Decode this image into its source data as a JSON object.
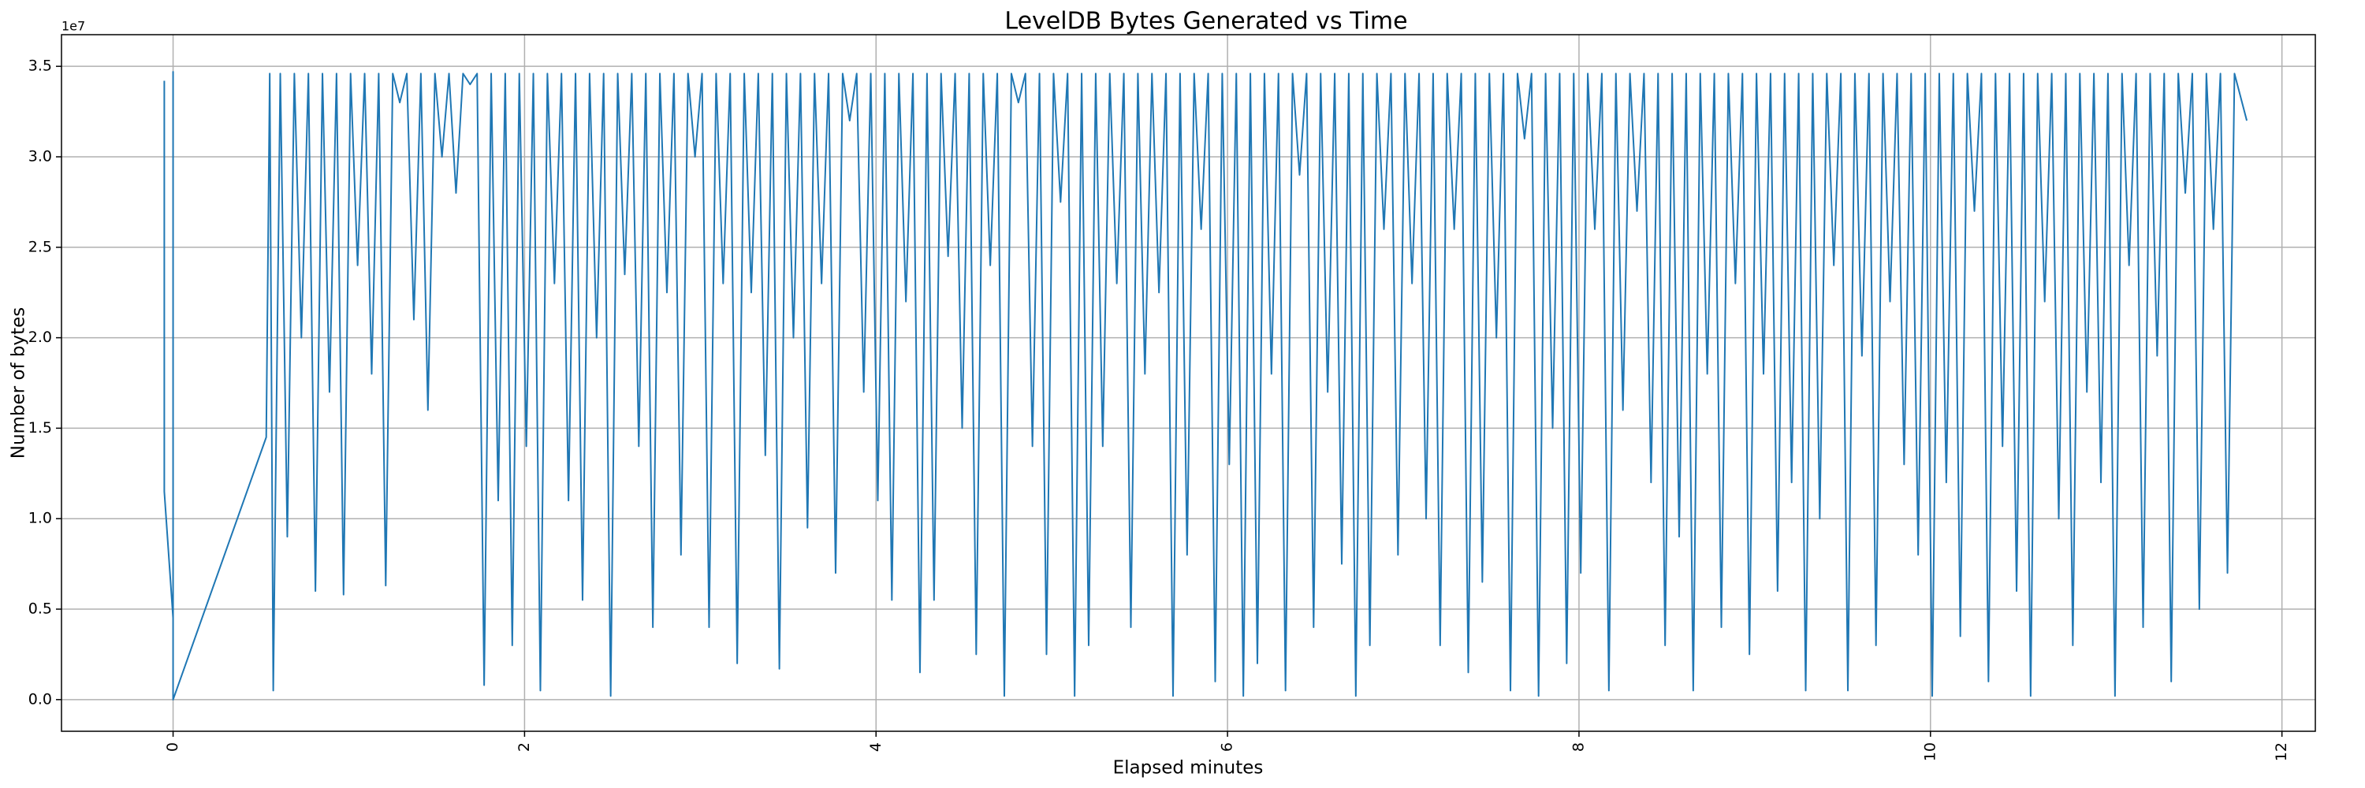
{
  "chart_data": {
    "type": "line",
    "title": "LevelDB Bytes Generated vs Time",
    "xlabel": "Elapsed minutes",
    "ylabel": "Number of bytes",
    "y_offset_label": "1e7",
    "color": "#1f77b4",
    "grid": true,
    "xlim": [
      -0.635,
      12.19
    ],
    "ylim": [
      -0.175,
      3.675
    ],
    "xticks": [
      0,
      2,
      4,
      6,
      8,
      10,
      12
    ],
    "yticks": [
      {
        "value": 0,
        "label": "0.0"
      },
      0.5,
      {
        "value": 1,
        "label": "1.0"
      },
      1.5,
      {
        "value": 2,
        "label": "2.0"
      },
      2.5,
      {
        "value": 3,
        "label": "3.0"
      },
      3.5
    ],
    "x": [
      -0.05,
      -0.05,
      0.0,
      0.0,
      0.0,
      0.53,
      0.55,
      0.57,
      0.61,
      0.65,
      0.69,
      0.73,
      0.77,
      0.81,
      0.85,
      0.89,
      0.93,
      0.97,
      1.01,
      1.05,
      1.09,
      1.13,
      1.17,
      1.21,
      1.25,
      1.29,
      1.33,
      1.37,
      1.41,
      1.45,
      1.49,
      1.53,
      1.57,
      1.61,
      1.65,
      1.69,
      1.73,
      1.77,
      1.81,
      1.85,
      1.89,
      1.93,
      1.97,
      2.01,
      2.05,
      2.09,
      2.13,
      2.17,
      2.21,
      2.25,
      2.29,
      2.33,
      2.37,
      2.41,
      2.45,
      2.49,
      2.53,
      2.57,
      2.61,
      2.65,
      2.69,
      2.73,
      2.77,
      2.81,
      2.85,
      2.89,
      2.93,
      2.97,
      3.01,
      3.05,
      3.09,
      3.13,
      3.17,
      3.21,
      3.25,
      3.29,
      3.33,
      3.37,
      3.41,
      3.45,
      3.49,
      3.53,
      3.57,
      3.61,
      3.65,
      3.69,
      3.73,
      3.77,
      3.81,
      3.85,
      3.89,
      3.93,
      3.97,
      4.01,
      4.05,
      4.09,
      4.13,
      4.17,
      4.21,
      4.25,
      4.29,
      4.33,
      4.37,
      4.41,
      4.45,
      4.49,
      4.53,
      4.57,
      4.61,
      4.65,
      4.69,
      4.73,
      4.77,
      4.81,
      4.85,
      4.89,
      4.93,
      4.97,
      5.01,
      5.05,
      5.09,
      5.13,
      5.17,
      5.21,
      5.25,
      5.29,
      5.33,
      5.37,
      5.41,
      5.45,
      5.49,
      5.53,
      5.57,
      5.61,
      5.65,
      5.69,
      5.73,
      5.77,
      5.81,
      5.85,
      5.89,
      5.93,
      5.97,
      6.01,
      6.05,
      6.09,
      6.13,
      6.17,
      6.21,
      6.25,
      6.29,
      6.33,
      6.37,
      6.41,
      6.45,
      6.49,
      6.53,
      6.57,
      6.61,
      6.65,
      6.69,
      6.73,
      6.77,
      6.81,
      6.85,
      6.89,
      6.93,
      6.97,
      7.01,
      7.05,
      7.09,
      7.13,
      7.17,
      7.21,
      7.25,
      7.29,
      7.33,
      7.37,
      7.41,
      7.45,
      7.49,
      7.53,
      7.57,
      7.61,
      7.65,
      7.69,
      7.73,
      7.77,
      7.81,
      7.85,
      7.89,
      7.93,
      7.97,
      8.01,
      8.05,
      8.09,
      8.13,
      8.17,
      8.21,
      8.25,
      8.29,
      8.33,
      8.37,
      8.41,
      8.45,
      8.49,
      8.53,
      8.57,
      8.61,
      8.65,
      8.69,
      8.73,
      8.77,
      8.81,
      8.85,
      8.89,
      8.93,
      8.97,
      9.01,
      9.05,
      9.09,
      9.13,
      9.17,
      9.21,
      9.25,
      9.29,
      9.33,
      9.37,
      9.41,
      9.45,
      9.49,
      9.53,
      9.57,
      9.61,
      9.65,
      9.69,
      9.73,
      9.77,
      9.81,
      9.85,
      9.89,
      9.93,
      9.97,
      10.01,
      10.05,
      10.09,
      10.13,
      10.17,
      10.21,
      10.25,
      10.29,
      10.33,
      10.37,
      10.41,
      10.45,
      10.49,
      10.53,
      10.57,
      10.61,
      10.65,
      10.69,
      10.73,
      10.77,
      10.81,
      10.85,
      10.89,
      10.93,
      10.97,
      11.01,
      11.05,
      11.09,
      11.13,
      11.17,
      11.21,
      11.25,
      11.29,
      11.33,
      11.37,
      11.41,
      11.45,
      11.49,
      11.53,
      11.57,
      11.61,
      11.65,
      11.69,
      11.73,
      11.8
    ],
    "values": [
      3.42,
      1.15,
      0.45,
      3.47,
      0.0,
      1.45,
      3.46,
      0.05,
      3.46,
      0.9,
      3.46,
      2.0,
      3.46,
      0.6,
      3.46,
      1.7,
      3.46,
      0.58,
      3.46,
      2.4,
      3.46,
      1.8,
      3.46,
      0.63,
      3.46,
      3.3,
      3.46,
      2.1,
      3.46,
      1.6,
      3.46,
      3.0,
      3.46,
      2.8,
      3.46,
      3.4,
      3.46,
      0.08,
      3.46,
      1.1,
      3.46,
      0.3,
      3.46,
      1.4,
      3.46,
      0.05,
      3.46,
      2.3,
      3.46,
      1.1,
      3.46,
      0.55,
      3.46,
      2.0,
      3.46,
      0.02,
      3.46,
      2.35,
      3.46,
      1.4,
      3.46,
      0.4,
      3.46,
      2.25,
      3.46,
      0.8,
      3.46,
      3.0,
      3.46,
      0.4,
      3.46,
      2.3,
      3.46,
      0.2,
      3.46,
      2.25,
      3.46,
      1.35,
      3.46,
      0.17,
      3.46,
      2.0,
      3.46,
      0.95,
      3.46,
      2.3,
      3.46,
      0.7,
      3.46,
      3.2,
      3.46,
      1.7,
      3.46,
      1.1,
      3.46,
      0.55,
      3.46,
      2.2,
      3.46,
      0.15,
      3.46,
      0.55,
      3.46,
      2.45,
      3.46,
      1.5,
      3.46,
      0.25,
      3.46,
      2.4,
      3.46,
      0.02,
      3.46,
      3.3,
      3.46,
      1.4,
      3.46,
      0.25,
      3.46,
      2.75,
      3.46,
      0.02,
      3.46,
      0.3,
      3.46,
      1.4,
      3.46,
      2.3,
      3.46,
      0.4,
      3.46,
      1.8,
      3.46,
      2.25,
      3.46,
      0.02,
      3.46,
      0.8,
      3.46,
      2.6,
      3.46,
      0.1,
      3.46,
      1.3,
      3.46,
      0.02,
      3.46,
      0.2,
      3.46,
      1.8,
      3.46,
      0.05,
      3.46,
      2.9,
      3.46,
      0.4,
      3.46,
      1.7,
      3.46,
      0.75,
      3.46,
      0.02,
      3.46,
      0.3,
      3.46,
      2.6,
      3.46,
      0.8,
      3.46,
      2.3,
      3.46,
      1.0,
      3.46,
      0.3,
      3.46,
      2.6,
      3.46,
      0.15,
      3.46,
      0.65,
      3.46,
      2.0,
      3.46,
      0.05,
      3.46,
      3.1,
      3.46,
      0.02,
      3.46,
      1.5,
      3.46,
      0.2,
      3.46,
      0.7,
      3.46,
      2.6,
      3.46,
      0.05,
      3.46,
      1.6,
      3.46,
      2.7,
      3.46,
      1.2,
      3.46,
      0.3,
      3.46,
      0.9,
      3.46,
      0.05,
      3.46,
      1.8,
      3.46,
      0.4,
      3.46,
      2.3,
      3.46,
      0.25,
      3.46,
      1.8,
      3.46,
      0.6,
      3.46,
      1.2,
      3.46,
      0.05,
      3.46,
      1.0,
      3.46,
      2.4,
      3.46,
      0.05,
      3.46,
      1.9,
      3.46,
      0.3,
      3.46,
      2.2,
      3.46,
      1.3,
      3.46,
      0.8,
      3.46,
      0.02,
      3.46,
      1.2,
      3.46,
      0.35,
      3.46,
      2.7,
      3.46,
      0.1,
      3.46,
      1.4,
      3.46,
      0.6,
      3.46,
      0.02,
      3.46,
      2.2,
      3.46,
      1.0,
      3.46,
      0.3,
      3.46,
      1.7,
      3.46,
      1.2,
      3.46,
      0.02,
      3.46,
      2.4,
      3.46,
      0.4,
      3.46,
      1.9,
      3.46,
      0.1,
      3.46,
      2.8,
      3.46,
      0.5,
      3.46,
      2.6,
      3.46,
      0.7,
      3.46,
      3.2
    ]
  }
}
